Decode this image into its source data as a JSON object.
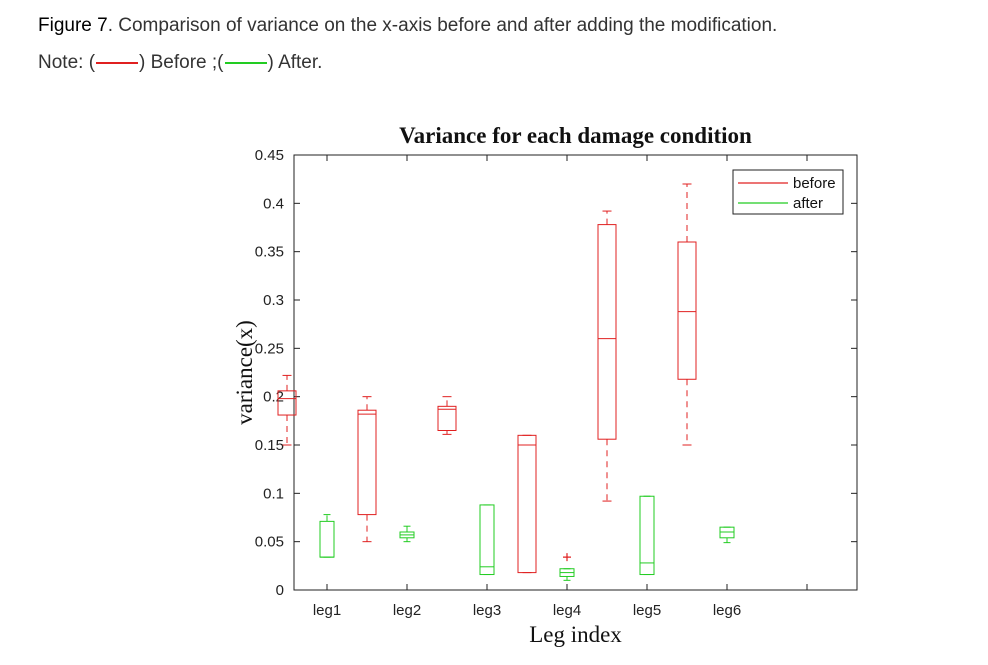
{
  "figure_caption": {
    "label": "Figure 7",
    "text": ". Comparison of variance on the x-axis before and after adding the modification."
  },
  "note": {
    "prefix": "Note: (",
    "before_text": ") Before ;(",
    "after_text": ") After.",
    "before_color": "#e02020",
    "after_color": "#22cc22"
  },
  "chart_data": {
    "type": "box",
    "title": "Variance for each damage condition",
    "xlabel": "Leg index",
    "ylabel": "variance(x)",
    "ylim": [
      0,
      0.45
    ],
    "yticks": [
      0,
      0.05,
      0.1,
      0.15,
      0.2,
      0.25,
      0.3,
      0.35,
      0.4,
      0.45
    ],
    "ytick_labels": [
      "0",
      "0.05",
      "0.1",
      "0.15",
      "0.2",
      "0.25",
      "0.3",
      "0.35",
      "0.4",
      "0.45"
    ],
    "categories": [
      "leg1",
      "leg2",
      "leg3",
      "leg4",
      "leg5",
      "leg6"
    ],
    "legend_position": "top-right",
    "grid": false,
    "series": [
      {
        "name": "before",
        "color": "#e02020",
        "boxes": [
          {
            "category": "leg1",
            "whisker_low": 0.15,
            "q1": 0.181,
            "median": 0.198,
            "q3": 0.206,
            "whisker_high": 0.222,
            "outliers": []
          },
          {
            "category": "leg2",
            "whisker_low": 0.05,
            "q1": 0.078,
            "median": 0.182,
            "q3": 0.186,
            "whisker_high": 0.2,
            "outliers": []
          },
          {
            "category": "leg3",
            "whisker_low": 0.161,
            "q1": 0.165,
            "median": 0.187,
            "q3": 0.19,
            "whisker_high": 0.2,
            "outliers": []
          },
          {
            "category": "leg4",
            "whisker_low": 0.018,
            "q1": 0.018,
            "median": 0.15,
            "q3": 0.16,
            "whisker_high": 0.16,
            "outliers": []
          },
          {
            "category": "leg5",
            "whisker_low": 0.092,
            "q1": 0.156,
            "median": 0.26,
            "q3": 0.378,
            "whisker_high": 0.392,
            "outliers": []
          },
          {
            "category": "leg6",
            "whisker_low": 0.15,
            "q1": 0.218,
            "median": 0.288,
            "q3": 0.36,
            "whisker_high": 0.42,
            "outliers": []
          }
        ]
      },
      {
        "name": "after",
        "color": "#22cc22",
        "boxes": [
          {
            "category": "leg1",
            "whisker_low": 0.034,
            "q1": 0.034,
            "median": 0.034,
            "q3": 0.071,
            "whisker_high": 0.078,
            "outliers": []
          },
          {
            "category": "leg2",
            "whisker_low": 0.05,
            "q1": 0.054,
            "median": 0.057,
            "q3": 0.06,
            "whisker_high": 0.066,
            "outliers": []
          },
          {
            "category": "leg3",
            "whisker_low": 0.016,
            "q1": 0.016,
            "median": 0.024,
            "q3": 0.088,
            "whisker_high": 0.088,
            "outliers": []
          },
          {
            "category": "leg4",
            "whisker_low": 0.01,
            "q1": 0.014,
            "median": 0.018,
            "q3": 0.022,
            "whisker_high": 0.022,
            "outliers": [
              0.034
            ]
          },
          {
            "category": "leg5",
            "whisker_low": 0.016,
            "q1": 0.016,
            "median": 0.028,
            "q3": 0.097,
            "whisker_high": 0.097,
            "outliers": []
          },
          {
            "category": "leg6",
            "whisker_low": 0.049,
            "q1": 0.054,
            "median": 0.06,
            "q3": 0.065,
            "whisker_high": 0.065,
            "outliers": []
          }
        ]
      }
    ]
  }
}
